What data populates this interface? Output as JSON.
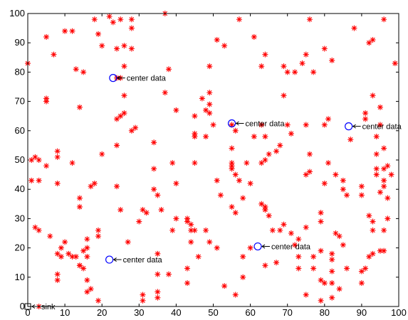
{
  "chart_data": {
    "type": "scatter",
    "title": "",
    "xlabel": "",
    "ylabel": "",
    "xlim": [
      0,
      100
    ],
    "ylim": [
      0,
      100
    ],
    "grid": false,
    "x_ticks": [
      "0",
      "10",
      "20",
      "30",
      "40",
      "50",
      "60",
      "70",
      "80",
      "90",
      "100"
    ],
    "y_ticks": [
      "0",
      "10",
      "20",
      "30",
      "40",
      "50",
      "60",
      "70",
      "80",
      "90",
      "100"
    ],
    "colors": {
      "nodes": "#ff0000",
      "centers": "#0000ff",
      "sink": "#000000",
      "axes": "#000000"
    },
    "series": [
      {
        "marker": "asterisk",
        "points": [
          [
            18,
            98
          ],
          [
            22,
            99
          ],
          [
            23,
            97
          ],
          [
            25,
            98
          ],
          [
            28,
            98
          ],
          [
            37,
            100
          ],
          [
            57,
            98
          ],
          [
            76,
            98
          ],
          [
            96,
            98
          ],
          [
            10,
            94
          ],
          [
            12,
            94
          ],
          [
            19,
            93
          ],
          [
            5,
            92
          ],
          [
            28,
            95
          ],
          [
            61,
            92
          ],
          [
            51,
            91
          ],
          [
            53,
            89
          ],
          [
            88,
            95
          ],
          [
            92,
            90
          ],
          [
            93,
            91
          ],
          [
            7,
            86
          ],
          [
            20,
            89
          ],
          [
            24,
            88
          ],
          [
            26,
            89
          ],
          [
            28,
            88
          ],
          [
            64,
            86
          ],
          [
            75,
            86
          ],
          [
            80,
            88
          ],
          [
            99,
            83
          ],
          [
            0,
            83
          ],
          [
            13,
            81
          ],
          [
            15,
            80
          ],
          [
            26,
            82
          ],
          [
            38,
            81
          ],
          [
            49,
            82
          ],
          [
            63,
            82
          ],
          [
            69,
            82
          ],
          [
            70,
            80
          ],
          [
            72,
            80
          ],
          [
            74,
            83
          ],
          [
            77,
            80
          ],
          [
            82,
            84
          ],
          [
            24,
            78
          ],
          [
            25,
            78
          ],
          [
            37,
            73
          ],
          [
            49,
            73
          ],
          [
            47,
            71
          ],
          [
            49,
            69
          ],
          [
            48,
            67
          ],
          [
            49,
            66
          ],
          [
            69,
            72
          ],
          [
            91,
            66
          ],
          [
            93,
            72
          ],
          [
            95,
            68
          ],
          [
            5,
            71
          ],
          [
            5,
            70
          ],
          [
            14,
            68
          ],
          [
            26,
            72
          ],
          [
            25,
            65
          ],
          [
            26,
            66
          ],
          [
            24,
            64
          ],
          [
            40,
            67
          ],
          [
            45,
            65
          ],
          [
            45,
            58
          ],
          [
            45,
            59
          ],
          [
            48,
            58
          ],
          [
            50,
            62
          ],
          [
            55,
            54
          ],
          [
            55,
            62
          ],
          [
            56,
            60
          ],
          [
            61,
            58
          ],
          [
            64,
            58
          ],
          [
            63,
            62
          ],
          [
            70,
            62
          ],
          [
            71,
            59
          ],
          [
            75,
            62
          ],
          [
            81,
            64
          ],
          [
            80,
            62
          ],
          [
            91,
            64
          ],
          [
            94,
            58
          ],
          [
            94,
            52
          ],
          [
            95,
            62
          ],
          [
            96,
            54
          ],
          [
            87,
            57
          ],
          [
            28,
            60
          ],
          [
            29,
            61
          ],
          [
            34,
            56
          ],
          [
            20,
            52
          ],
          [
            8,
            53
          ],
          [
            8,
            51
          ],
          [
            5,
            48
          ],
          [
            2,
            51
          ],
          [
            3,
            50
          ],
          [
            12,
            49
          ],
          [
            24,
            55
          ],
          [
            39,
            49
          ],
          [
            45,
            49
          ],
          [
            55,
            49
          ],
          [
            55,
            48
          ],
          [
            55,
            47
          ],
          [
            56,
            45
          ],
          [
            59,
            49
          ],
          [
            63,
            49
          ],
          [
            64,
            50
          ],
          [
            65,
            52
          ],
          [
            67,
            53
          ],
          [
            68,
            55
          ],
          [
            76,
            52
          ],
          [
            81,
            49
          ],
          [
            83,
            45
          ],
          [
            85,
            43
          ],
          [
            94,
            47
          ],
          [
            94,
            45
          ],
          [
            96,
            47
          ],
          [
            97,
            48
          ],
          [
            98,
            45
          ],
          [
            96,
            43
          ],
          [
            96,
            41
          ],
          [
            1,
            50
          ],
          [
            1,
            43
          ],
          [
            3,
            43
          ],
          [
            8,
            42
          ],
          [
            18,
            42
          ],
          [
            17,
            41
          ],
          [
            24,
            41
          ],
          [
            34,
            47
          ],
          [
            40,
            42
          ],
          [
            51,
            43
          ],
          [
            57,
            43
          ],
          [
            60,
            42
          ],
          [
            75,
            45
          ],
          [
            76,
            46
          ],
          [
            80,
            42
          ],
          [
            85,
            40
          ],
          [
            86,
            38
          ],
          [
            90,
            41
          ],
          [
            90,
            38
          ],
          [
            95,
            39
          ],
          [
            97,
            37
          ],
          [
            34,
            40
          ],
          [
            35,
            38
          ],
          [
            36,
            33
          ],
          [
            14,
            37
          ],
          [
            14,
            34
          ],
          [
            25,
            33
          ],
          [
            30,
            29
          ],
          [
            31,
            33
          ],
          [
            32,
            32
          ],
          [
            40,
            30
          ],
          [
            43,
            30
          ],
          [
            43,
            29
          ],
          [
            44,
            28
          ],
          [
            44,
            26
          ],
          [
            45,
            26
          ],
          [
            48,
            26
          ],
          [
            49,
            22
          ],
          [
            52,
            38
          ],
          [
            55,
            34
          ],
          [
            56,
            32
          ],
          [
            58,
            37
          ],
          [
            63,
            35
          ],
          [
            64,
            34
          ],
          [
            64,
            33
          ],
          [
            65,
            31
          ],
          [
            66,
            26
          ],
          [
            69,
            28
          ],
          [
            68,
            26
          ],
          [
            71,
            25
          ],
          [
            72,
            21
          ],
          [
            73,
            23
          ],
          [
            75,
            27
          ],
          [
            79,
            32
          ],
          [
            79,
            29
          ],
          [
            83,
            25
          ],
          [
            84,
            24
          ],
          [
            85,
            21
          ],
          [
            92,
            31
          ],
          [
            93,
            29
          ],
          [
            93,
            26
          ],
          [
            96,
            26
          ],
          [
            97,
            30
          ],
          [
            2,
            27
          ],
          [
            3,
            26
          ],
          [
            6,
            24
          ],
          [
            9,
            20
          ],
          [
            10,
            22
          ],
          [
            12,
            17
          ],
          [
            15,
            19
          ],
          [
            16,
            23
          ],
          [
            16,
            20
          ],
          [
            16,
            17
          ],
          [
            19,
            26
          ],
          [
            19,
            24
          ],
          [
            27,
            22
          ],
          [
            39,
            26
          ],
          [
            44,
            22
          ],
          [
            51,
            20
          ],
          [
            58,
            17
          ],
          [
            60,
            20
          ],
          [
            73,
            17
          ],
          [
            77,
            17
          ],
          [
            79,
            19
          ],
          [
            82,
            18
          ],
          [
            82,
            16
          ],
          [
            92,
            17
          ],
          [
            93,
            18
          ],
          [
            95,
            19
          ],
          [
            96,
            19
          ],
          [
            8,
            18
          ],
          [
            9,
            17
          ],
          [
            11,
            18
          ],
          [
            13,
            17
          ],
          [
            14,
            14
          ],
          [
            15,
            13
          ],
          [
            16,
            9
          ],
          [
            19,
            2
          ],
          [
            17,
            6
          ],
          [
            35,
            18
          ],
          [
            35,
            11
          ],
          [
            38,
            11
          ],
          [
            43,
            13
          ],
          [
            43,
            8
          ],
          [
            46,
            17
          ],
          [
            53,
            7
          ],
          [
            56,
            4
          ],
          [
            58,
            10
          ],
          [
            64,
            14
          ],
          [
            67,
            15
          ],
          [
            73,
            13
          ],
          [
            77,
            13
          ],
          [
            79,
            9
          ],
          [
            80,
            8
          ],
          [
            82,
            12
          ],
          [
            82,
            8
          ],
          [
            84,
            6
          ],
          [
            86,
            13
          ],
          [
            90,
            8
          ],
          [
            90,
            12
          ],
          [
            91,
            13
          ],
          [
            75,
            4
          ],
          [
            79,
            2
          ],
          [
            82,
            3
          ],
          [
            8,
            11
          ],
          [
            8,
            9
          ],
          [
            14,
            14
          ],
          [
            16,
            5
          ],
          [
            31,
            4
          ],
          [
            31,
            2
          ],
          [
            35,
            5
          ],
          [
            35,
            3
          ],
          [
            3,
            0
          ]
        ]
      },
      {
        "marker": "circle",
        "points": [
          [
            23,
            78
          ],
          [
            55,
            62.5
          ],
          [
            86.5,
            61.5
          ],
          [
            22,
            16
          ],
          [
            62,
            20.5
          ]
        ]
      },
      {
        "marker": "square",
        "points": [
          [
            0,
            0
          ]
        ]
      }
    ],
    "annotations": [
      {
        "label": "center data",
        "x": 23,
        "y": 78
      },
      {
        "label": "center data",
        "x": 55,
        "y": 62.5
      },
      {
        "label": "center data",
        "x": 86.5,
        "y": 61.5
      },
      {
        "label": "center data",
        "x": 22,
        "y": 16
      },
      {
        "label": "center data",
        "x": 62,
        "y": 20.5
      },
      {
        "label": "sink",
        "x": 0,
        "y": 0
      }
    ]
  }
}
